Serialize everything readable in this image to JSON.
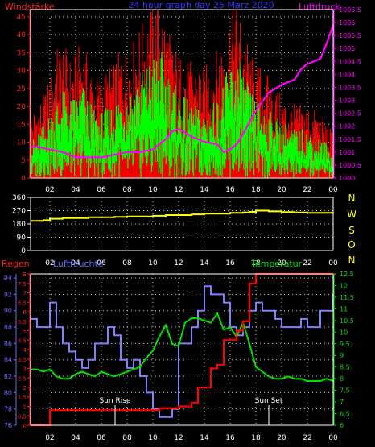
{
  "colors": {
    "background": "#000000",
    "frame": "#ffffff",
    "grid": "#c8c8c8",
    "wind_avg": "#00ff00",
    "wind_gust": "#ff0000",
    "pressure": "#ff00ff",
    "direction": "#ffff00",
    "humidity": "#8080ff",
    "temperature": "#00e000",
    "rain": "#ff0000",
    "axis_red": "#ff2020",
    "axis_blue": "#6a6aff",
    "axis_green": "#00e000",
    "axis_magenta": "#ff00ff",
    "axis_yellow": "#ffff00",
    "tick_text": "#ffffff",
    "title": "#3838ff"
  },
  "chart_data": [
    {
      "type": "line",
      "title": "24 hour graph day 25 März 2020",
      "left_label": "Windstärke",
      "right_label": "Luftdruck",
      "x_ticks": [
        "02",
        "04",
        "06",
        "08",
        "10",
        "12",
        "14",
        "16",
        "18",
        "20",
        "22",
        "00"
      ],
      "y_left_ticks": [
        "0",
        "5",
        "10",
        "15",
        "20",
        "25",
        "30",
        "35",
        "40",
        "45"
      ],
      "y_right_ticks": [
        "1000",
        "1000.5",
        "1001",
        "1001.5",
        "1002",
        "1002.5",
        "1003",
        "1003.5",
        "1004",
        "1004.5",
        "1005",
        "1005.5",
        "1006",
        "1006.5"
      ],
      "ylim_left": [
        0,
        47
      ],
      "ylim_right": [
        1000,
        1006.5
      ],
      "xlim_hours": [
        0.5,
        24
      ],
      "series": [
        {
          "key": "wind_gust",
          "x": [
            0.5,
            1,
            1.5,
            2,
            2.5,
            3,
            3.5,
            4,
            4.5,
            5,
            5.5,
            6,
            6.5,
            7,
            7.5,
            8,
            8.5,
            9,
            9.5,
            10,
            10.5,
            11,
            11.5,
            12,
            12.5,
            13,
            13.5,
            14,
            14.5,
            15,
            15.5,
            16,
            16.5,
            17,
            17.5,
            18,
            18.5,
            19,
            19.5,
            20,
            20.5,
            21,
            21.5,
            22,
            22.5,
            23,
            23.5,
            24
          ],
          "values": [
            14,
            16,
            18,
            22,
            28,
            30,
            26,
            27,
            30,
            26,
            22,
            22,
            24,
            25,
            28,
            28,
            30,
            33,
            35,
            38,
            40,
            35,
            30,
            27,
            26,
            25,
            25,
            24,
            26,
            28,
            32,
            36,
            38,
            34,
            28,
            25,
            24,
            22,
            20,
            18,
            17,
            16,
            16,
            16,
            15,
            14,
            12,
            10
          ]
        },
        {
          "key": "wind_avg",
          "x": [
            0.5,
            1,
            1.5,
            2,
            2.5,
            3,
            3.5,
            4,
            4.5,
            5,
            5.5,
            6,
            6.5,
            7,
            7.5,
            8,
            8.5,
            9,
            9.5,
            10,
            10.5,
            11,
            11.5,
            12,
            12.5,
            13,
            13.5,
            14,
            14.5,
            15,
            15.5,
            16,
            16.5,
            17,
            17.5,
            18,
            18.5,
            19,
            19.5,
            20,
            20.5,
            21,
            21.5,
            22,
            22.5,
            23,
            23.5,
            24
          ],
          "values": [
            8,
            10,
            12,
            15,
            18,
            20,
            18,
            19,
            22,
            18,
            15,
            15,
            16,
            18,
            20,
            20,
            22,
            24,
            26,
            28,
            30,
            26,
            22,
            20,
            18,
            17,
            16,
            15,
            17,
            18,
            22,
            26,
            28,
            25,
            20,
            18,
            17,
            15,
            14,
            13,
            12,
            11,
            11,
            11,
            10,
            9,
            8,
            6
          ]
        },
        {
          "key": "pressure",
          "axis": "right",
          "x": [
            0.5,
            1,
            2,
            3,
            4,
            5,
            6,
            7,
            8,
            9,
            10,
            10.5,
            11,
            11.5,
            12,
            13,
            14,
            15,
            15.5,
            16,
            16.5,
            17,
            18,
            19,
            20,
            21,
            21.5,
            22,
            23,
            23.5,
            24
          ],
          "values": [
            1001.2,
            1001.2,
            1001.1,
            1001.0,
            1000.8,
            1000.8,
            1000.8,
            1000.9,
            1001.0,
            1001.0,
            1001.1,
            1001.3,
            1001.5,
            1001.8,
            1001.9,
            1001.6,
            1001.4,
            1001.3,
            1001.0,
            1001.1,
            1001.3,
            1001.7,
            1002.6,
            1003.3,
            1003.6,
            1003.8,
            1004.2,
            1004.4,
            1004.6,
            1005.2,
            1005.9
          ]
        }
      ]
    },
    {
      "type": "line",
      "right_label": "N W S O N",
      "x_ticks": [
        "02",
        "04",
        "06",
        "08",
        "10",
        "12",
        "14",
        "16",
        "18",
        "20",
        "22",
        "00"
      ],
      "y_ticks": [
        "0",
        "90",
        "180",
        "270",
        "360"
      ],
      "ylim": [
        0,
        360
      ],
      "xlim_hours": [
        0.5,
        24
      ],
      "series": [
        {
          "key": "direction",
          "x": [
            0.5,
            1,
            1.5,
            2,
            3,
            4,
            5,
            6,
            7,
            8,
            9,
            10,
            11,
            12,
            13,
            14,
            15,
            16,
            17,
            17.5,
            18,
            19,
            20,
            21,
            22,
            23,
            24
          ],
          "values": [
            200,
            200,
            205,
            215,
            220,
            220,
            225,
            225,
            228,
            230,
            230,
            235,
            240,
            240,
            245,
            250,
            250,
            255,
            258,
            262,
            270,
            265,
            260,
            258,
            255,
            255,
            258
          ]
        }
      ]
    },
    {
      "type": "line",
      "left_label_rain": "Regen",
      "left_label_humidity": "Luftfeuchte",
      "right_label": "Temperatur",
      "annotations": [
        "Sun Rise",
        "Sun Set"
      ],
      "x_ticks": [
        "02",
        "04",
        "06",
        "08",
        "10",
        "12",
        "14",
        "16",
        "18",
        "20",
        "22",
        "00"
      ],
      "y_humidity_ticks": [
        "76",
        "78",
        "80",
        "82",
        "84",
        "86",
        "88",
        "90",
        "92",
        "94"
      ],
      "y_rain_ticks": [
        "0",
        "0.5",
        "1",
        "1.5",
        "2",
        "2.5",
        "3",
        "3.5",
        "4",
        "4.5",
        "5",
        "5.5",
        "6",
        "6.5",
        "7",
        "7.5",
        "8"
      ],
      "y_temp_ticks": [
        "6",
        "6.5",
        "7",
        "7.5",
        "8",
        "8.5",
        "9",
        "9.5",
        "10",
        "10.5",
        "11",
        "11.5",
        "12",
        "12.5"
      ],
      "ylim_humidity": [
        76,
        94.5
      ],
      "ylim_rain": [
        0,
        8
      ],
      "ylim_temp": [
        6,
        12.5
      ],
      "xlim_hours": [
        0.5,
        24
      ],
      "series": [
        {
          "key": "rain",
          "x": [
            0.5,
            1,
            1.5,
            2,
            6,
            8,
            10,
            10.5,
            11,
            12,
            12.5,
            13,
            13.5,
            14,
            14.5,
            15,
            15.5,
            16,
            16.5,
            17,
            17.5,
            18,
            20,
            22,
            24
          ],
          "values": [
            0,
            0,
            0,
            0.8,
            0.8,
            0.8,
            0.8,
            0.9,
            0.9,
            1.0,
            1.0,
            1.2,
            2.0,
            2.0,
            3.0,
            3.2,
            4.5,
            4.5,
            5.0,
            5.5,
            7.5,
            8.0,
            8.0,
            8.0,
            8.0
          ]
        },
        {
          "key": "humidity",
          "x": [
            0.5,
            1,
            1.5,
            2,
            2.5,
            3,
            3.5,
            4,
            4.5,
            5,
            5.5,
            6,
            6.5,
            7,
            7.5,
            8,
            8.5,
            9,
            9.5,
            10,
            10.5,
            11,
            11.5,
            12,
            12.5,
            13,
            13.5,
            14,
            14.5,
            15,
            15.5,
            16,
            16.5,
            17,
            17.5,
            18,
            18.5,
            19,
            19.5,
            20,
            20.5,
            21,
            21.5,
            22,
            22.5,
            23,
            23.5,
            24
          ],
          "values": [
            89,
            88,
            88,
            91,
            88,
            86,
            85,
            84,
            83,
            84,
            86,
            86,
            88,
            87,
            84,
            83,
            84,
            82,
            80,
            78,
            77,
            77,
            78,
            86,
            86,
            88,
            90,
            93,
            92,
            92,
            91,
            88,
            87,
            88,
            90,
            91,
            90,
            90,
            89,
            88,
            88,
            88,
            89,
            88,
            88,
            90,
            90,
            92
          ]
        },
        {
          "key": "temperature",
          "axis": "right",
          "x": [
            0.5,
            1,
            1.5,
            2,
            2.5,
            3,
            3.5,
            4,
            4.5,
            5,
            5.5,
            6,
            6.5,
            7,
            7.5,
            8,
            8.5,
            9,
            9.5,
            10,
            10.5,
            11,
            11.5,
            12,
            12.5,
            13,
            13.5,
            14,
            14.5,
            15,
            15.5,
            16,
            16.5,
            17,
            17.5,
            18,
            18.5,
            19,
            19.5,
            20,
            20.5,
            21,
            21.5,
            22,
            22.5,
            23,
            23.5,
            24
          ],
          "values": [
            8.4,
            8.4,
            8.3,
            8.4,
            8.1,
            8.0,
            8.0,
            8.2,
            8.3,
            8.2,
            8.1,
            8.3,
            8.2,
            8.1,
            8.2,
            8.3,
            8.4,
            8.5,
            8.9,
            9.2,
            9.8,
            10.3,
            9.5,
            9.4,
            10.4,
            10.6,
            10.6,
            10.5,
            10.4,
            10.8,
            10.1,
            10.2,
            9.8,
            10.4,
            9.5,
            8.5,
            8.3,
            8.1,
            8.0,
            8.0,
            8.1,
            8.0,
            8.0,
            7.9,
            7.9,
            7.9,
            8.0,
            7.9
          ]
        }
      ]
    }
  ]
}
